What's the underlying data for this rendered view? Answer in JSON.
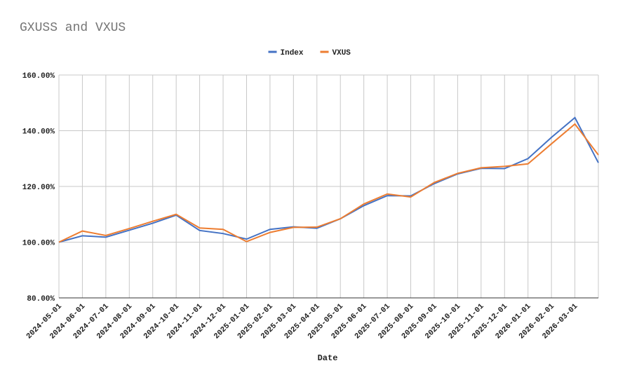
{
  "chart_data": {
    "type": "line",
    "title": "GXUSS and VXUS",
    "x_label": "Date",
    "categories": [
      "2024-05-01",
      "2024-06-01",
      "2024-07-01",
      "2024-08-01",
      "2024-09-01",
      "2024-10-01",
      "2024-11-01",
      "2024-12-01",
      "2025-01-01",
      "2025-02-01",
      "2025-03-01",
      "2025-04-01",
      "2025-05-01",
      "2025-06-01",
      "2025-07-01",
      "2025-08-01",
      "2025-09-01",
      "2025-10-01",
      "2025-11-01",
      "2025-12-01",
      "2026-01-01",
      "2026-02-01",
      "2026-03-01",
      null
    ],
    "series": [
      {
        "name": "Index",
        "color": "#4472c4",
        "values": [
          100,
          102.3,
          101.8,
          104.3,
          106.8,
          109.7,
          104.2,
          103.1,
          101.1,
          104.6,
          105.5,
          105.0,
          108.4,
          113.1,
          116.7,
          116.6,
          121.0,
          124.5,
          126.5,
          126.4,
          130.0,
          137.6,
          144.7,
          128.5
        ]
      },
      {
        "name": "VXUS",
        "color": "#ed7d31",
        "values": [
          100,
          104.0,
          102.4,
          104.9,
          107.5,
          110.0,
          105.1,
          104.6,
          100.2,
          103.5,
          105.3,
          105.4,
          108.4,
          113.7,
          117.3,
          116.2,
          121.4,
          124.7,
          126.7,
          127.2,
          128.1,
          135.3,
          142.4,
          131.3
        ]
      }
    ],
    "ylim": [
      80,
      160
    ],
    "yticks": [
      {
        "value": 80,
        "label": "80.00%"
      },
      {
        "value": 100,
        "label": "100.00%"
      },
      {
        "value": 120,
        "label": "120.00%"
      },
      {
        "value": 140,
        "label": "140.00%"
      },
      {
        "value": 160,
        "label": "160.00%"
      }
    ],
    "grid": true,
    "legend": "top"
  }
}
